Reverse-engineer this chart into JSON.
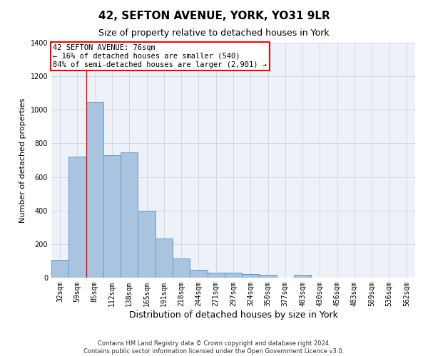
{
  "title": "42, SEFTON AVENUE, YORK, YO31 9LR",
  "subtitle": "Size of property relative to detached houses in York",
  "xlabel": "Distribution of detached houses by size in York",
  "ylabel": "Number of detached properties",
  "footer_line1": "Contains HM Land Registry data © Crown copyright and database right 2024.",
  "footer_line2": "Contains public sector information licensed under the Open Government Licence v3.0.",
  "categories": [
    "32sqm",
    "59sqm",
    "85sqm",
    "112sqm",
    "138sqm",
    "165sqm",
    "191sqm",
    "218sqm",
    "244sqm",
    "271sqm",
    "297sqm",
    "324sqm",
    "350sqm",
    "377sqm",
    "403sqm",
    "430sqm",
    "456sqm",
    "483sqm",
    "509sqm",
    "536sqm",
    "562sqm"
  ],
  "values": [
    108,
    720,
    1050,
    730,
    748,
    400,
    235,
    115,
    45,
    28,
    28,
    22,
    15,
    0,
    18,
    0,
    0,
    0,
    0,
    0,
    0
  ],
  "bar_color": "#aac4e0",
  "bar_edge_color": "#5b9bd5",
  "ylim": [
    0,
    1400
  ],
  "yticks": [
    0,
    200,
    400,
    600,
    800,
    1000,
    1200,
    1400
  ],
  "property_line_x": 1.5,
  "annotation_text_line1": "42 SEFTON AVENUE: 76sqm",
  "annotation_text_line2": "← 16% of detached houses are smaller (540)",
  "annotation_text_line3": "84% of semi-detached houses are larger (2,901) →",
  "bg_color": "#ffffff",
  "plot_bg_color": "#eef2f8",
  "grid_color": "#d0d8e8",
  "title_fontsize": 11,
  "subtitle_fontsize": 9,
  "xlabel_fontsize": 9,
  "ylabel_fontsize": 8,
  "tick_fontsize": 7,
  "annotation_fontsize": 7.5,
  "footer_fontsize": 6
}
